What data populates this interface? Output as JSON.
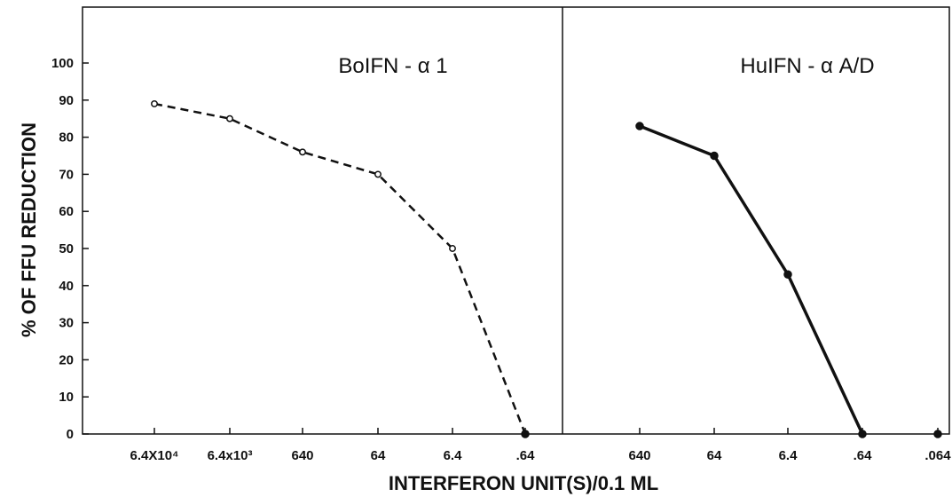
{
  "chart_data": {
    "type": "line",
    "xlabel": "INTERFERON UNIT(S)/0.1 ML",
    "ylabel": "% OF FFU REDUCTION",
    "ylim": [
      0,
      110
    ],
    "yticks": [
      0,
      10,
      20,
      30,
      40,
      50,
      60,
      70,
      80,
      90,
      100
    ],
    "grid": false,
    "legend": "none",
    "panels": [
      {
        "title": "BoIFN - α 1",
        "categories": [
          "6.4X10⁴",
          "6.4x10³",
          "640",
          "64",
          "6.4",
          ".64"
        ],
        "series": [
          {
            "values": [
              89,
              85,
              76,
              70,
              50,
              0
            ],
            "line_style": "dashed",
            "marker": "open-circle",
            "last_marker": "filled-circle",
            "color": "#111111"
          }
        ]
      },
      {
        "title": "HuIFN - α A/D",
        "categories": [
          "640",
          "64",
          "6.4",
          ".64",
          ".064"
        ],
        "series": [
          {
            "values": [
              83,
              75,
              43,
              0
            ],
            "line_style": "solid",
            "marker": "filled-circle",
            "color": "#111111"
          }
        ],
        "extra_points": [
          {
            "category": ".064",
            "value": 0,
            "marker": "filled-circle"
          }
        ]
      }
    ]
  }
}
